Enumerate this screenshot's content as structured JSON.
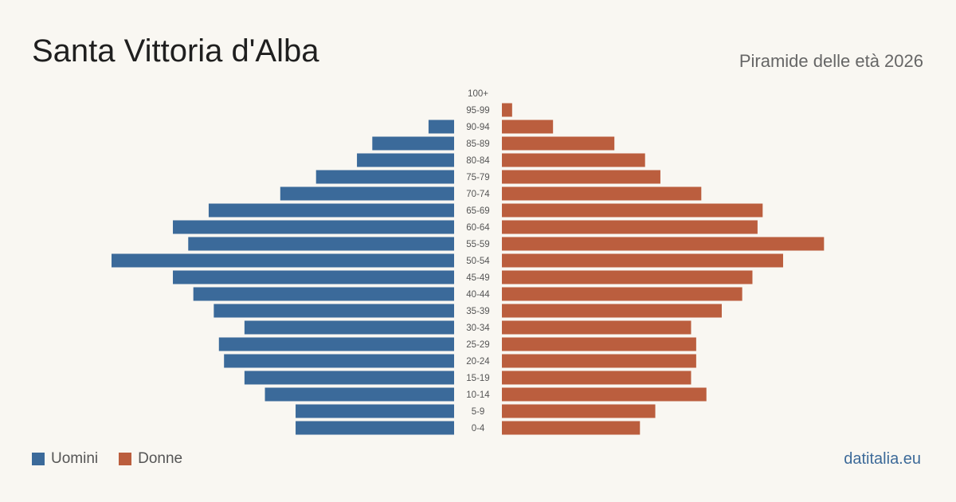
{
  "header": {
    "title": "Santa Vittoria d'Alba",
    "subtitle": "Piramide delle età 2026"
  },
  "legend": {
    "male_label": "Uomini",
    "female_label": "Donne"
  },
  "footer": {
    "brand": "datitalia.eu"
  },
  "colors": {
    "male": "#3b6a9a",
    "female": "#bb5e3e",
    "background": "#f9f7f2",
    "tick_text": "#555555"
  },
  "chart_data": {
    "type": "bar",
    "orientation": "horizontal-pyramid",
    "categories": [
      "100+",
      "95-99",
      "90-94",
      "85-89",
      "80-84",
      "75-79",
      "70-74",
      "65-69",
      "60-64",
      "55-59",
      "50-54",
      "45-49",
      "40-44",
      "35-39",
      "30-34",
      "25-29",
      "20-24",
      "15-19",
      "10-14",
      "5-9",
      "0-4"
    ],
    "series": [
      {
        "name": "Uomini",
        "values": [
          0,
          0,
          5,
          16,
          19,
          27,
          34,
          48,
          55,
          52,
          67,
          55,
          51,
          47,
          41,
          46,
          45,
          41,
          37,
          31,
          31
        ]
      },
      {
        "name": "Donne",
        "values": [
          0,
          2,
          10,
          22,
          28,
          31,
          39,
          51,
          50,
          63,
          55,
          49,
          47,
          43,
          37,
          38,
          38,
          37,
          40,
          30,
          27
        ]
      }
    ],
    "xlim": [
      0,
      67
    ],
    "grid": false,
    "legend_position": "bottom-left"
  }
}
